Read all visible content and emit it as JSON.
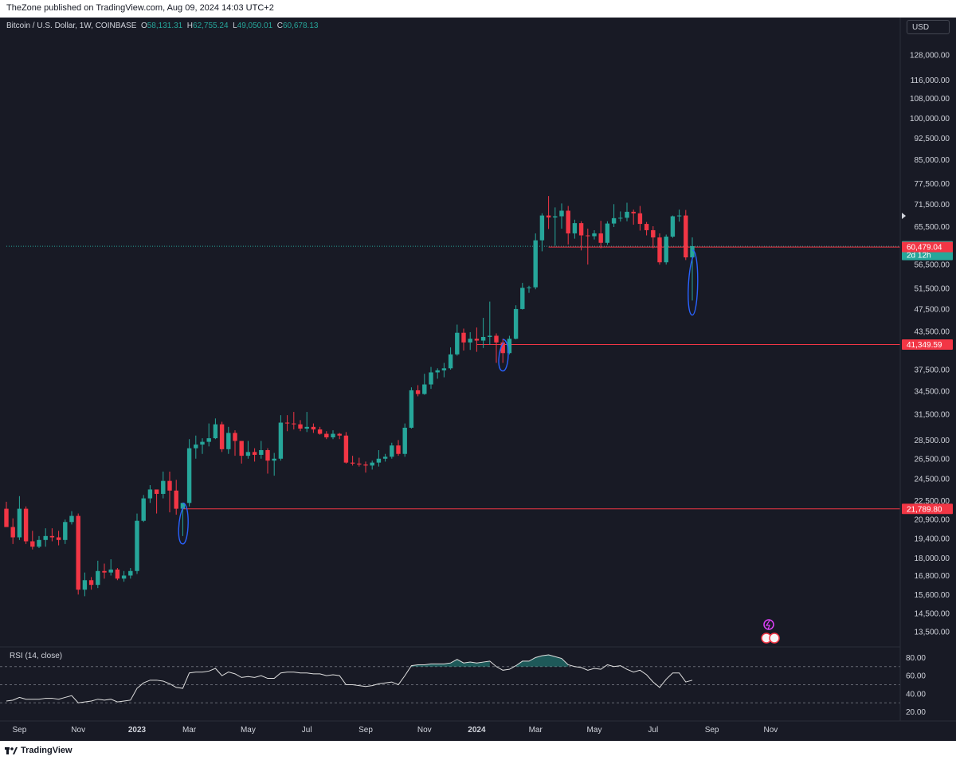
{
  "header": {
    "publisher_line": "TheZone published on TradingView.com, Aug 09, 2024 14:03 UTC+2"
  },
  "symbol": {
    "name": "Bitcoin / U.S. Dollar, 1W, COINBASE",
    "open_label": "O",
    "open": "58,131.31",
    "high_label": "H",
    "high": "62,755.24",
    "low_label": "L",
    "low": "49,050.01",
    "close_label": "C",
    "close": "60,678.13"
  },
  "currency": "USD",
  "footer": {
    "brand": "TradingView"
  },
  "colors": {
    "up": "#26a69a",
    "down": "#f23645",
    "hline": "#f23645",
    "annotation": "#2962ff",
    "background": "#181a25"
  },
  "chart_data": [
    {
      "type": "candlestick",
      "title": "Bitcoin / U.S. Dollar, 1W, COINBASE",
      "y_scale": "log",
      "ylim": [
        12800,
        140000
      ],
      "x_axis_labels": [
        {
          "label": "Sep",
          "week": 2
        },
        {
          "label": "Nov",
          "week": 11
        },
        {
          "label": "2023",
          "week": 20
        },
        {
          "label": "Mar",
          "week": 28
        },
        {
          "label": "May",
          "week": 37
        },
        {
          "label": "Jul",
          "week": 46
        },
        {
          "label": "Sep",
          "week": 55
        },
        {
          "label": "Nov",
          "week": 64
        },
        {
          "label": "2024",
          "week": 72
        },
        {
          "label": "Mar",
          "week": 81
        },
        {
          "label": "May",
          "week": 90
        },
        {
          "label": "Jul",
          "week": 99
        },
        {
          "label": "Sep",
          "week": 108
        },
        {
          "label": "Nov",
          "week": 117
        }
      ],
      "y_axis_labels": [
        "128,000.00",
        "116,000.00",
        "108,000.00",
        "100,000.00",
        "92,500.00",
        "85,000.00",
        "77,500.00",
        "71,500.00",
        "65,500.00",
        "56,500.00",
        "51,500.00",
        "47,500.00",
        "43,500.00",
        "37,500.00",
        "34,500.00",
        "31,500.00",
        "28,500.00",
        "26,500.00",
        "24,500.00",
        "22,500.00",
        "20,900.00",
        "19,400.00",
        "18,000.00",
        "16,800.00",
        "15,600.00",
        "14,500.00",
        "13,500.00"
      ],
      "price_tags": [
        {
          "label": "60,678.13",
          "sublabel": "2d 12h",
          "color": "#26a69a"
        },
        {
          "label": "60,479.04",
          "color": "#f23645"
        },
        {
          "label": "41,349.59",
          "color": "#f23645"
        },
        {
          "label": "21,789.80",
          "color": "#f23645"
        }
      ],
      "hlines": [
        {
          "price": 60678.13,
          "style": "dotted",
          "color": "#26a69a",
          "from_week": 0
        },
        {
          "price": 60479.04,
          "style": "solid",
          "color": "#f23645",
          "from_week": 83
        },
        {
          "price": 41349.59,
          "style": "solid",
          "color": "#f23645",
          "from_week": 72
        },
        {
          "price": 21789.8,
          "style": "solid",
          "color": "#f23645",
          "from_week": 27
        }
      ],
      "candles": [
        [
          21800,
          22400,
          20500,
          20300
        ],
        [
          20300,
          21000,
          19000,
          19500
        ],
        [
          19500,
          22900,
          19300,
          21800
        ],
        [
          21800,
          22000,
          19000,
          19200
        ],
        [
          19200,
          20000,
          18600,
          18800
        ],
        [
          18800,
          19600,
          18700,
          19300
        ],
        [
          19300,
          20200,
          18800,
          19600
        ],
        [
          19600,
          20200,
          19200,
          19500
        ],
        [
          19500,
          20000,
          18900,
          19300
        ],
        [
          19300,
          20900,
          19000,
          20700
        ],
        [
          20700,
          21600,
          20500,
          21200
        ],
        [
          21200,
          21400,
          15600,
          15900
        ],
        [
          15900,
          17000,
          15500,
          16500
        ],
        [
          16500,
          16700,
          15900,
          16200
        ],
        [
          16200,
          17800,
          16000,
          17100
        ],
        [
          17100,
          17600,
          16600,
          17000
        ],
        [
          17000,
          17900,
          16800,
          17200
        ],
        [
          17200,
          17300,
          16500,
          16600
        ],
        [
          16600,
          17100,
          16400,
          16800
        ],
        [
          16800,
          17300,
          16600,
          17100
        ],
        [
          17100,
          21400,
          16900,
          20800
        ],
        [
          20800,
          23000,
          20700,
          22700
        ],
        [
          22700,
          23900,
          22300,
          23500
        ],
        [
          23500,
          23400,
          21400,
          23100
        ],
        [
          23100,
          25200,
          22700,
          24300
        ],
        [
          24300,
          25200,
          21500,
          23400
        ],
        [
          23400,
          24400,
          21300,
          21800
        ],
        [
          21800,
          22200,
          19600,
          22300
        ],
        [
          22300,
          28600,
          22000,
          27600
        ],
        [
          27600,
          29000,
          26500,
          28000
        ],
        [
          28000,
          28700,
          27000,
          28300
        ],
        [
          28300,
          30400,
          27800,
          28700
        ],
        [
          28700,
          31000,
          28600,
          30300
        ],
        [
          30300,
          30600,
          27200,
          27500
        ],
        [
          27500,
          30000,
          27000,
          29300
        ],
        [
          29300,
          29600,
          26800,
          28400
        ],
        [
          28400,
          28400,
          26000,
          26800
        ],
        [
          26800,
          28400,
          26500,
          27200
        ],
        [
          27200,
          27600,
          26200,
          26900
        ],
        [
          26900,
          28400,
          26500,
          27400
        ],
        [
          27400,
          27600,
          25000,
          26300
        ],
        [
          26300,
          27100,
          24800,
          26500
        ],
        [
          26500,
          31400,
          26300,
          30500
        ],
        [
          30500,
          31400,
          29500,
          30400
        ],
        [
          30400,
          31800,
          29700,
          30300
        ],
        [
          30300,
          30800,
          29500,
          29800
        ],
        [
          29800,
          31800,
          29400,
          30000
        ],
        [
          30000,
          30400,
          29300,
          29700
        ],
        [
          29700,
          30000,
          29100,
          29200
        ],
        [
          29200,
          29500,
          28600,
          28800
        ],
        [
          28800,
          29600,
          28600,
          29200
        ],
        [
          29200,
          29300,
          28600,
          29000
        ],
        [
          29000,
          29400,
          26000,
          26100
        ],
        [
          26100,
          26800,
          25800,
          26000
        ],
        [
          26000,
          26600,
          25700,
          25900
        ],
        [
          25900,
          26200,
          25100,
          25800
        ],
        [
          25800,
          26300,
          25400,
          26100
        ],
        [
          26100,
          27400,
          25700,
          26500
        ],
        [
          26500,
          27000,
          26200,
          26700
        ],
        [
          26700,
          28200,
          26500,
          27900
        ],
        [
          27900,
          28500,
          26800,
          27000
        ],
        [
          27000,
          30400,
          26700,
          29900
        ],
        [
          29900,
          35000,
          29800,
          34600
        ],
        [
          34600,
          35300,
          33800,
          34100
        ],
        [
          34100,
          36900,
          34000,
          35400
        ],
        [
          35400,
          37900,
          34800,
          37100
        ],
        [
          37100,
          37700,
          36200,
          37400
        ],
        [
          37400,
          38500,
          36400,
          37700
        ],
        [
          37700,
          40900,
          37500,
          39800
        ],
        [
          39800,
          44700,
          39600,
          43300
        ],
        [
          43300,
          44000,
          40400,
          41700
        ],
        [
          41700,
          43400,
          40500,
          42300
        ],
        [
          42300,
          44200,
          40200,
          42000
        ],
        [
          42000,
          45900,
          40800,
          42600
        ],
        [
          42600,
          48900,
          41300,
          42800
        ],
        [
          42800,
          43200,
          38500,
          41700
        ],
        [
          41700,
          42300,
          38500,
          40000
        ],
        [
          40000,
          42800,
          39800,
          42300
        ],
        [
          42300,
          48200,
          42200,
          47500
        ],
        [
          47500,
          52600,
          47400,
          51600
        ],
        [
          51600,
          52000,
          50600,
          51700
        ],
        [
          51700,
          63800,
          51300,
          62100
        ],
        [
          62100,
          69000,
          59500,
          68400
        ],
        [
          68400,
          73800,
          64900,
          67900
        ],
        [
          67900,
          70600,
          60800,
          68200
        ],
        [
          68200,
          71700,
          65000,
          69700
        ],
        [
          69700,
          71000,
          61100,
          63800
        ],
        [
          63800,
          67300,
          62500,
          66400
        ],
        [
          66400,
          66900,
          59700,
          63300
        ],
        [
          63300,
          65000,
          56500,
          63100
        ],
        [
          63100,
          64600,
          62300,
          63800
        ],
        [
          63800,
          67000,
          60200,
          61500
        ],
        [
          61500,
          66900,
          61000,
          66300
        ],
        [
          66300,
          71500,
          65400,
          67700
        ],
        [
          67700,
          69500,
          66800,
          67800
        ],
        [
          67800,
          71900,
          66900,
          69400
        ],
        [
          69400,
          70000,
          66000,
          69000
        ],
        [
          69000,
          71000,
          64500,
          66200
        ],
        [
          66200,
          66700,
          63300,
          64600
        ],
        [
          64600,
          65600,
          60200,
          62800
        ],
        [
          62800,
          63800,
          56500,
          57000
        ],
        [
          57000,
          63500,
          56500,
          63000
        ],
        [
          63000,
          68400,
          62700,
          68200
        ],
        [
          68200,
          70000,
          66800,
          68400
        ],
        [
          68400,
          69900,
          57500,
          58100
        ],
        [
          58100,
          62800,
          49100,
          60700
        ]
      ]
    },
    {
      "type": "line",
      "title": "RSI (14, close)",
      "ylim": [
        10,
        90
      ],
      "y_axis_labels": [
        "80.00",
        "60.00",
        "40.00",
        "20.00"
      ],
      "bands": [
        70,
        50,
        30
      ],
      "values": [
        32,
        33,
        36,
        34,
        34,
        34,
        35,
        35,
        34,
        36,
        38,
        30,
        31,
        32,
        34,
        33,
        34,
        31,
        32,
        33,
        46,
        52,
        55,
        55,
        54,
        51,
        47,
        46,
        63,
        64,
        64,
        65,
        68,
        60,
        64,
        62,
        58,
        59,
        58,
        60,
        57,
        57,
        63,
        64,
        64,
        63,
        63,
        62,
        62,
        60,
        61,
        60,
        50,
        50,
        49,
        48,
        49,
        51,
        52,
        53,
        50,
        60,
        71,
        72,
        72,
        73,
        73,
        73,
        74,
        78,
        74,
        75,
        74,
        75,
        76,
        70,
        66,
        67,
        71,
        76,
        76,
        80,
        82,
        83,
        81,
        79,
        72,
        70,
        69,
        66,
        68,
        67,
        72,
        70,
        71,
        67,
        64,
        66,
        61,
        53,
        47,
        56,
        63,
        63,
        53,
        55
      ]
    }
  ],
  "annotations": [
    {
      "type": "loop",
      "week": 27,
      "price_top": 22300,
      "price_bottom": 19000
    },
    {
      "type": "loop",
      "week": 76,
      "price_top": 42200,
      "price_bottom": 37300
    },
    {
      "type": "loop",
      "week": 105,
      "price_top": 59800,
      "price_bottom": 46400
    }
  ]
}
